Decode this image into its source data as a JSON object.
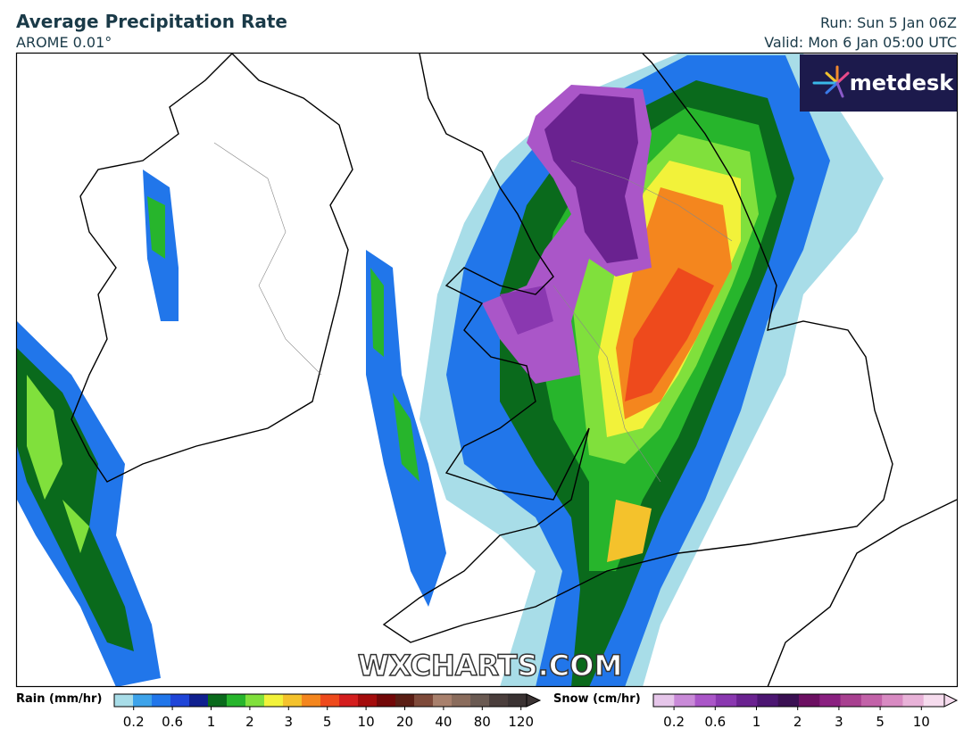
{
  "header": {
    "title": "Average Precipitation Rate",
    "model": "AROME 0.01°",
    "run": "Run: Sun 5 Jan 06Z",
    "valid": "Valid: Mon 6 Jan 05:00 UTC"
  },
  "logo": "metdesk",
  "watermark": "WXCHARTS.COM",
  "legend": {
    "rain": {
      "label": "Rain (mm/hr)",
      "ticks": [
        0.2,
        0.6,
        1,
        2,
        3,
        5,
        10,
        20,
        40,
        80,
        120
      ],
      "colors": [
        "#a8dde8",
        "#3da3ea",
        "#2176ea",
        "#1f45d8",
        "#10208f",
        "#0a6a1c",
        "#27b52c",
        "#80e03c",
        "#f2f23a",
        "#f4c22c",
        "#f4861e",
        "#ee4a1c",
        "#d41e1e",
        "#a40c0c",
        "#720808",
        "#5a1e14",
        "#7e4a3a",
        "#a8806c",
        "#8a6c5c",
        "#6a5a52",
        "#4a3e3c",
        "#3a3232"
      ]
    },
    "snow": {
      "label": "Snow (cm/hr)",
      "ticks": [
        0.2,
        0.6,
        1,
        2,
        3,
        5,
        10
      ],
      "colors": [
        "#e6c6ea",
        "#c98ad8",
        "#aa56c8",
        "#8a38b0",
        "#6a2290",
        "#4c1672",
        "#3a1052",
        "#6c1062",
        "#8a2080",
        "#a84090",
        "#c262a8",
        "#d88ac2",
        "#e8b2d8",
        "#f6dcee"
      ]
    }
  }
}
